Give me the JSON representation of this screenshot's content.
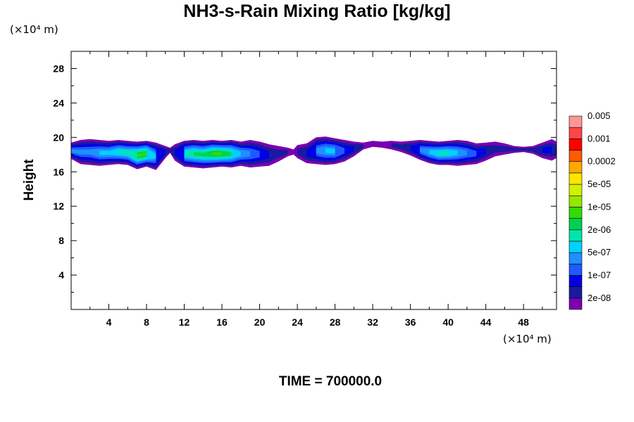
{
  "chart_data": {
    "type": "heatmap",
    "title": "NH3-s-Rain Mixing Ratio [kg/kg]",
    "xlabel": "",
    "ylabel": "Height",
    "x_unit": "(×10⁴ m)",
    "y_unit": "(×10⁴ m)",
    "xlim": [
      0,
      51.5
    ],
    "ylim": [
      0,
      30
    ],
    "x_ticks": [
      4,
      8,
      12,
      16,
      20,
      24,
      28,
      32,
      36,
      40,
      44,
      48
    ],
    "y_ticks": [
      4,
      8,
      12,
      16,
      20,
      24,
      28
    ],
    "grid": false,
    "footer": "TIME = 700000.0",
    "colorbar": {
      "colors": [
        "#7a00b0",
        "#1a1aa0",
        "#0000e6",
        "#1e5aff",
        "#1e90ff",
        "#00d2ff",
        "#00e6aa",
        "#00d250",
        "#32dc00",
        "#96e600",
        "#d2f000",
        "#ffe600",
        "#ffaa00",
        "#ff5a00",
        "#ff0000",
        "#ff4646",
        "#ff9696"
      ],
      "labels": [
        "2e-08",
        "1e-07",
        "5e-07",
        "2e-06",
        "1e-05",
        "5e-05",
        "0.0002",
        "0.001",
        "0.005"
      ]
    },
    "bands": [
      {
        "x": [
          0,
          1,
          2,
          3,
          4,
          5,
          6,
          7,
          8,
          9,
          10,
          10.5,
          11,
          12,
          13,
          14,
          15,
          16,
          17,
          18,
          19,
          20,
          21,
          22,
          23,
          23.6,
          24,
          25,
          26,
          27,
          28,
          29,
          30,
          31,
          32,
          33,
          34,
          35,
          36,
          37,
          38,
          39,
          40,
          41,
          42,
          43,
          44,
          45,
          46,
          47,
          48,
          49,
          50,
          51,
          51.5
        ],
        "top": [
          19.4,
          19.7,
          19.8,
          19.7,
          19.6,
          19.7,
          19.6,
          19.5,
          19.6,
          19.4,
          19.0,
          18.8,
          19.2,
          19.6,
          19.7,
          19.6,
          19.7,
          19.6,
          19.7,
          19.5,
          19.7,
          19.5,
          19.2,
          19.0,
          18.8,
          18.6,
          19.1,
          19.3,
          20.0,
          20.1,
          19.9,
          19.7,
          19.5,
          19.4,
          19.6,
          19.5,
          19.6,
          19.5,
          19.6,
          19.7,
          19.6,
          19.5,
          19.6,
          19.7,
          19.6,
          19.3,
          19.4,
          19.5,
          19.3,
          19.0,
          18.9,
          19.0,
          19.4,
          19.8,
          19.5
        ],
        "bottom": [
          17.5,
          16.9,
          16.8,
          16.7,
          16.8,
          16.9,
          16.8,
          16.3,
          16.6,
          16.2,
          17.6,
          18.2,
          17.3,
          16.6,
          16.5,
          16.4,
          16.5,
          16.6,
          16.5,
          16.7,
          16.5,
          16.6,
          16.7,
          17.2,
          17.8,
          18.0,
          17.6,
          17.0,
          16.9,
          16.8,
          16.9,
          17.2,
          17.8,
          18.6,
          18.9,
          18.8,
          18.6,
          18.3,
          17.9,
          17.4,
          17.0,
          16.8,
          16.8,
          16.7,
          16.8,
          16.9,
          17.3,
          17.8,
          18.0,
          18.2,
          18.3,
          18.1,
          17.6,
          17.3,
          17.6
        ],
        "level": [
          4,
          4,
          4,
          5,
          5,
          6,
          6,
          8,
          8,
          5,
          2,
          1,
          2,
          6,
          7,
          7,
          8,
          8,
          7,
          5,
          4,
          3,
          2,
          1,
          1,
          0,
          1,
          2,
          4,
          5,
          5,
          3,
          2,
          1,
          0,
          0,
          1,
          1,
          2,
          4,
          5,
          6,
          6,
          5,
          4,
          3,
          2,
          1,
          1,
          1,
          1,
          1,
          2,
          2,
          1
        ]
      }
    ]
  }
}
